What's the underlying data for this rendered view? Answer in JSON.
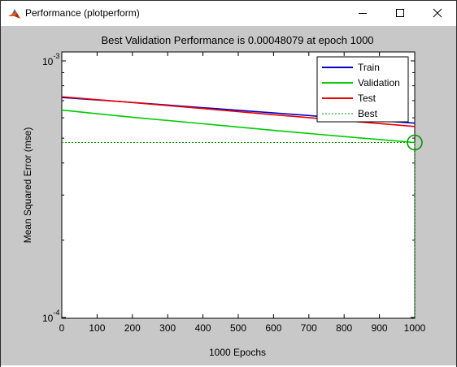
{
  "window": {
    "title": "Performance (plotperform)",
    "icon": "matlab-icon",
    "controls": {
      "minimize": "minimize-icon",
      "maximize": "maximize-icon",
      "close": "close-icon"
    }
  },
  "colors": {
    "train": "#0000cc",
    "validation": "#00cc00",
    "test": "#ee0000",
    "best": "#009900",
    "figure_bg": "#c8c8c8",
    "axes_bg": "#ffffff"
  },
  "chart_data": {
    "type": "line",
    "title": "Best Validation Performance is 0.00048079 at epoch 1000",
    "xlabel": "1000 Epochs",
    "ylabel": "Mean Squared Error  (mse)",
    "xlim": [
      0,
      1000
    ],
    "ylim": [
      0.0001,
      0.001
    ],
    "yscale": "log",
    "grid": false,
    "legend_position": "top-right",
    "xticks": [
      "0",
      "100",
      "200",
      "300",
      "400",
      "500",
      "600",
      "700",
      "800",
      "900",
      "1000"
    ],
    "yticks": [
      {
        "base": "10",
        "exp": "-3",
        "value": 0.001
      },
      {
        "base": "10",
        "exp": "-4",
        "value": 0.0001
      }
    ],
    "series": [
      {
        "name": "Train",
        "style": "solid",
        "x": [
          0,
          200,
          400,
          600,
          800,
          1000
        ],
        "y": [
          0.00072,
          0.000689,
          0.000657,
          0.000627,
          0.000598,
          0.000572
        ]
      },
      {
        "name": "Validation",
        "style": "solid",
        "x": [
          0,
          200,
          400,
          600,
          800,
          1000
        ],
        "y": [
          0.000643,
          0.000603,
          0.000569,
          0.000536,
          0.000507,
          0.00048079
        ]
      },
      {
        "name": "Test",
        "style": "solid",
        "x": [
          0,
          200,
          400,
          600,
          800,
          1000
        ],
        "y": [
          0.000725,
          0.000688,
          0.000652,
          0.000617,
          0.000585,
          0.000555
        ]
      },
      {
        "name": "Best",
        "style": "dotted",
        "x": [
          0,
          1000
        ],
        "y": [
          0.00048079,
          0.00048079
        ]
      }
    ],
    "best_point": {
      "epoch": 1000,
      "value": 0.00048079
    }
  }
}
